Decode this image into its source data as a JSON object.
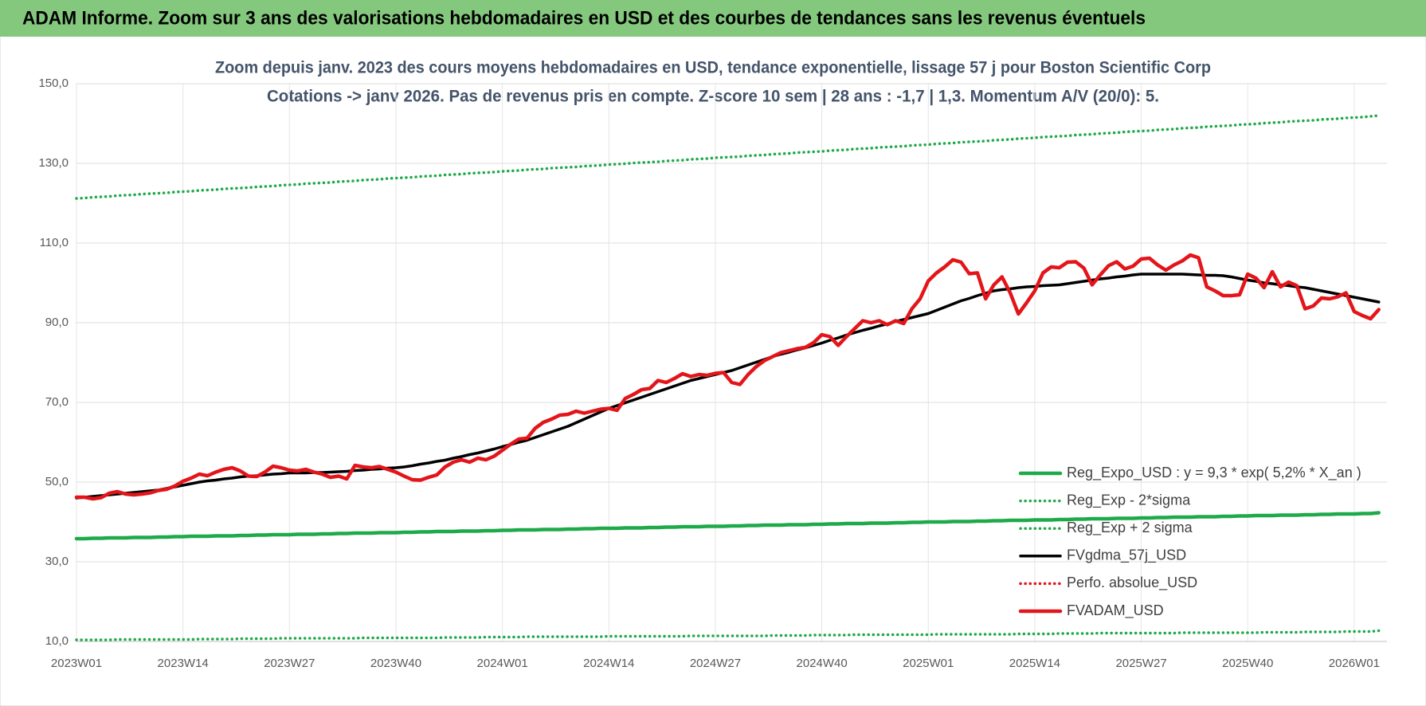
{
  "header": {
    "title": "ADAM Informe. Zoom sur 3 ans des valorisations hebdomadaires en USD et des courbes de tendances sans les revenus éventuels"
  },
  "chart_data": {
    "type": "line",
    "title": "Zoom depuis janv. 2023 des cours moyens hebdomadaires en USD, tendance exponentielle, lissage 57 j pour Boston Scientific Corp",
    "subtitle": "Cotations -> janv 2026. Pas de revenus pris en compte. Z-score 10 sem | 28 ans : -1,7 | 1,3. Momentum A/V (20/0): 5.",
    "ylim": [
      10,
      150
    ],
    "yticks": [
      {
        "value": 10,
        "label": "10,0"
      },
      {
        "value": 30,
        "label": "30,0"
      },
      {
        "value": 50,
        "label": "50,0"
      },
      {
        "value": 70,
        "label": "70,0"
      },
      {
        "value": 90,
        "label": "90,0"
      },
      {
        "value": 110,
        "label": "110,0"
      },
      {
        "value": 130,
        "label": "130,0"
      },
      {
        "value": 150,
        "label": "150,0"
      }
    ],
    "grid": true,
    "legend": "lower-right",
    "categories": [
      "2023W01",
      null,
      null,
      null,
      null,
      null,
      null,
      null,
      null,
      null,
      null,
      null,
      null,
      "2023W14",
      null,
      null,
      null,
      null,
      null,
      null,
      null,
      null,
      null,
      null,
      null,
      null,
      "2023W27",
      null,
      null,
      null,
      null,
      null,
      null,
      null,
      null,
      null,
      null,
      null,
      null,
      "2023W40",
      null,
      null,
      null,
      null,
      null,
      null,
      null,
      null,
      null,
      null,
      null,
      null,
      "2024W01",
      null,
      null,
      null,
      null,
      null,
      null,
      null,
      null,
      null,
      null,
      null,
      null,
      "2024W14",
      null,
      null,
      null,
      null,
      null,
      null,
      null,
      null,
      null,
      null,
      null,
      null,
      "2024W27",
      null,
      null,
      null,
      null,
      null,
      null,
      null,
      null,
      null,
      null,
      null,
      null,
      "2024W40",
      null,
      null,
      null,
      null,
      null,
      null,
      null,
      null,
      null,
      null,
      null,
      null,
      "2025W01",
      null,
      null,
      null,
      null,
      null,
      null,
      null,
      null,
      null,
      null,
      null,
      null,
      "2025W14",
      null,
      null,
      null,
      null,
      null,
      null,
      null,
      null,
      null,
      null,
      null,
      null,
      "2025W27",
      null,
      null,
      null,
      null,
      null,
      null,
      null,
      null,
      null,
      null,
      null,
      null,
      "2025W40",
      null,
      null,
      null,
      null,
      null,
      null,
      null,
      null,
      null,
      null,
      null,
      null,
      "2026W01",
      null,
      null,
      null
    ],
    "series": [
      {
        "name": "Reg_Expo_USD : y = 9,3 * exp( 5,2% * X_an )",
        "color": "#1faa4a",
        "linestyle": "solid",
        "values": [
          35.8,
          35.8,
          35.9,
          35.9,
          36.0,
          36.0,
          36.0,
          36.1,
          36.1,
          36.1,
          36.2,
          36.2,
          36.3,
          36.3,
          36.4,
          36.4,
          36.4,
          36.5,
          36.5,
          36.5,
          36.6,
          36.6,
          36.7,
          36.7,
          36.8,
          36.8,
          36.8,
          36.9,
          36.9,
          36.9,
          37.0,
          37.0,
          37.1,
          37.1,
          37.2,
          37.2,
          37.2,
          37.3,
          37.3,
          37.3,
          37.4,
          37.4,
          37.5,
          37.5,
          37.6,
          37.6,
          37.6,
          37.7,
          37.7,
          37.7,
          37.8,
          37.8,
          37.9,
          37.9,
          38.0,
          38.0,
          38.0,
          38.1,
          38.1,
          38.1,
          38.2,
          38.2,
          38.3,
          38.3,
          38.4,
          38.4,
          38.4,
          38.5,
          38.5,
          38.5,
          38.6,
          38.6,
          38.7,
          38.7,
          38.8,
          38.8,
          38.8,
          38.9,
          38.9,
          38.9,
          39.0,
          39.0,
          39.1,
          39.1,
          39.2,
          39.2,
          39.2,
          39.3,
          39.3,
          39.3,
          39.4,
          39.4,
          39.5,
          39.5,
          39.6,
          39.6,
          39.6,
          39.7,
          39.7,
          39.7,
          39.8,
          39.8,
          39.9,
          39.9,
          40.0,
          40.0,
          40.0,
          40.1,
          40.1,
          40.1,
          40.2,
          40.2,
          40.3,
          40.3,
          40.4,
          40.4,
          40.4,
          40.5,
          40.5,
          40.5,
          40.6,
          40.6,
          40.7,
          40.7,
          40.8,
          40.8,
          40.8,
          40.9,
          40.9,
          40.9,
          41.0,
          41.0,
          41.1,
          41.1,
          41.2,
          41.2,
          41.2,
          41.3,
          41.3,
          41.3,
          41.4,
          41.4,
          41.5,
          41.5,
          41.6,
          41.6,
          41.6,
          41.7,
          41.7,
          41.7,
          41.8,
          41.8,
          41.9,
          41.9,
          42.0,
          42.0,
          42.0,
          42.1,
          42.1,
          42.3
        ]
      },
      {
        "name": "Reg_Exp - 2*sigma",
        "color": "#1faa4a",
        "linestyle": "dotted",
        "values": [
          10.4,
          10.4,
          10.4,
          10.4,
          10.4,
          10.5,
          10.5,
          10.5,
          10.5,
          10.5,
          10.5,
          10.5,
          10.5,
          10.5,
          10.5,
          10.6,
          10.6,
          10.6,
          10.6,
          10.6,
          10.7,
          10.7,
          10.7,
          10.7,
          10.7,
          10.8,
          10.8,
          10.8,
          10.8,
          10.8,
          10.8,
          10.8,
          10.8,
          10.8,
          10.8,
          10.9,
          10.9,
          10.9,
          10.9,
          10.9,
          10.9,
          10.9,
          10.9,
          10.9,
          10.9,
          11.0,
          11.0,
          11.0,
          11.0,
          11.0,
          11.1,
          11.1,
          11.1,
          11.1,
          11.1,
          11.2,
          11.2,
          11.2,
          11.2,
          11.2,
          11.2,
          11.2,
          11.2,
          11.2,
          11.2,
          11.3,
          11.3,
          11.3,
          11.3,
          11.3,
          11.3,
          11.3,
          11.3,
          11.3,
          11.3,
          11.4,
          11.4,
          11.4,
          11.4,
          11.4,
          11.4,
          11.4,
          11.4,
          11.4,
          11.4,
          11.5,
          11.5,
          11.5,
          11.5,
          11.5,
          11.6,
          11.6,
          11.6,
          11.6,
          11.6,
          11.7,
          11.7,
          11.7,
          11.7,
          11.7,
          11.7,
          11.7,
          11.7,
          11.7,
          11.7,
          11.8,
          11.8,
          11.8,
          11.8,
          11.8,
          11.8,
          11.8,
          11.8,
          11.8,
          11.8,
          11.9,
          11.9,
          11.9,
          11.9,
          11.9,
          12.0,
          12.0,
          12.0,
          12.0,
          12.0,
          12.1,
          12.1,
          12.1,
          12.1,
          12.1,
          12.1,
          12.1,
          12.1,
          12.1,
          12.1,
          12.2,
          12.2,
          12.2,
          12.2,
          12.2,
          12.2,
          12.2,
          12.2,
          12.2,
          12.2,
          12.3,
          12.3,
          12.3,
          12.3,
          12.3,
          12.4,
          12.4,
          12.4,
          12.4,
          12.4,
          12.5,
          12.5,
          12.5,
          12.5,
          12.7
        ]
      },
      {
        "name": "Reg_Exp + 2 sigma",
        "color": "#1faa4a",
        "linestyle": "dotted",
        "values": [
          121.2,
          121.3,
          121.5,
          121.6,
          121.7,
          121.9,
          122.0,
          122.1,
          122.3,
          122.4,
          122.5,
          122.6,
          122.8,
          122.9,
          123.0,
          123.2,
          123.3,
          123.4,
          123.6,
          123.7,
          123.8,
          123.9,
          124.1,
          124.2,
          124.3,
          124.5,
          124.6,
          124.7,
          124.9,
          125.0,
          125.1,
          125.2,
          125.4,
          125.5,
          125.6,
          125.8,
          125.9,
          126.0,
          126.2,
          126.3,
          126.4,
          126.5,
          126.7,
          126.8,
          126.9,
          127.1,
          127.2,
          127.3,
          127.5,
          127.6,
          127.7,
          127.8,
          128.0,
          128.1,
          128.2,
          128.4,
          128.5,
          128.6,
          128.8,
          128.9,
          129.0,
          129.1,
          129.3,
          129.4,
          129.5,
          129.7,
          129.8,
          129.9,
          130.1,
          130.2,
          130.3,
          130.4,
          130.6,
          130.7,
          130.8,
          131.0,
          131.1,
          131.2,
          131.4,
          131.5,
          131.6,
          131.7,
          131.9,
          132.0,
          132.1,
          132.3,
          132.4,
          132.5,
          132.7,
          132.8,
          132.9,
          133.0,
          133.2,
          133.3,
          133.4,
          133.6,
          133.7,
          133.8,
          134.0,
          134.1,
          134.2,
          134.3,
          134.5,
          134.6,
          134.7,
          134.9,
          135.0,
          135.1,
          135.3,
          135.4,
          135.5,
          135.6,
          135.8,
          135.9,
          136.0,
          136.2,
          136.3,
          136.4,
          136.6,
          136.7,
          136.8,
          136.9,
          137.1,
          137.2,
          137.3,
          137.5,
          137.6,
          137.7,
          137.9,
          138.0,
          138.1,
          138.2,
          138.4,
          138.5,
          138.6,
          138.8,
          138.9,
          139.0,
          139.2,
          139.3,
          139.4,
          139.5,
          139.7,
          139.8,
          139.9,
          140.1,
          140.2,
          140.3,
          140.5,
          140.6,
          140.7,
          140.8,
          141.0,
          141.1,
          141.2,
          141.4,
          141.5,
          141.6,
          141.8,
          142.0
        ]
      },
      {
        "name": "FVgdma_57j_USD",
        "color": "#000000",
        "linestyle": "solid",
        "values": [
          46.0,
          46.2,
          46.4,
          46.6,
          46.8,
          47.0,
          47.2,
          47.4,
          47.6,
          47.8,
          48.0,
          48.4,
          48.8,
          49.2,
          49.6,
          50.0,
          50.3,
          50.5,
          50.8,
          51.0,
          51.3,
          51.5,
          51.6,
          51.8,
          52.0,
          52.1,
          52.3,
          52.3,
          52.3,
          52.4,
          52.4,
          52.5,
          52.6,
          52.7,
          52.9,
          53.0,
          53.2,
          53.3,
          53.5,
          53.6,
          53.8,
          54.1,
          54.5,
          54.8,
          55.2,
          55.5,
          56.0,
          56.4,
          56.9,
          57.3,
          57.8,
          58.3,
          58.9,
          59.4,
          60.0,
          60.5,
          61.2,
          61.9,
          62.6,
          63.3,
          64.0,
          64.9,
          65.8,
          66.7,
          67.6,
          68.5,
          69.2,
          69.9,
          70.6,
          71.3,
          72.0,
          72.7,
          73.4,
          74.1,
          74.8,
          75.5,
          76.0,
          76.5,
          77.0,
          77.5,
          78.0,
          78.7,
          79.4,
          80.1,
          80.8,
          81.5,
          82.1,
          82.6,
          83.2,
          83.7,
          84.3,
          84.9,
          85.6,
          86.2,
          86.9,
          87.5,
          88.1,
          88.6,
          89.2,
          89.7,
          90.3,
          90.8,
          91.3,
          91.8,
          92.3,
          93.1,
          93.9,
          94.7,
          95.5,
          96.1,
          96.8,
          97.4,
          98.0,
          98.3,
          98.5,
          98.8,
          99.0,
          99.1,
          99.3,
          99.4,
          99.5,
          99.8,
          100.1,
          100.4,
          100.7,
          101.0,
          101.2,
          101.5,
          101.7,
          102.0,
          102.2,
          102.2,
          102.2,
          102.2,
          102.2,
          102.2,
          102.1,
          102.0,
          101.9,
          101.9,
          101.8,
          101.5,
          101.1,
          100.7,
          100.4,
          100.0,
          99.8,
          99.5,
          99.3,
          99.0,
          98.8,
          98.4,
          98.0,
          97.6,
          97.2,
          96.8,
          96.4,
          96.0,
          95.6,
          95.2
        ]
      },
      {
        "name": "Perfo. absolue_USD",
        "color": "#e3151a",
        "linestyle": "dotted",
        "values": [
          46.2,
          46.2,
          45.8,
          46.1,
          47.2,
          47.6,
          47.0,
          46.8,
          47.0,
          47.3,
          47.9,
          48.2,
          49.0,
          50.2,
          51.0,
          52.0,
          51.6,
          52.5,
          53.2,
          53.6,
          52.8,
          51.5,
          51.4,
          52.5,
          54.0,
          53.6,
          53.0,
          52.8,
          53.2,
          52.5,
          52.0,
          51.2,
          51.5,
          50.8,
          54.2,
          53.8,
          53.6,
          53.9,
          53.2,
          52.5,
          51.5,
          50.6,
          50.5,
          51.2,
          51.8,
          53.8,
          55.0,
          55.6,
          55.0,
          56.0,
          55.6,
          56.5,
          58.0,
          59.5,
          60.8,
          61.0,
          63.5,
          65.0,
          65.8,
          66.8,
          67.0,
          67.8,
          67.3,
          67.8,
          68.3,
          68.5,
          68.0,
          71.0,
          72.0,
          73.2,
          73.5,
          75.5,
          75.0,
          76.0,
          77.2,
          76.5,
          77.0,
          76.8,
          77.3,
          77.5,
          75.0,
          74.5,
          77.0,
          79.0,
          80.5,
          81.5,
          82.5,
          83.0,
          83.5,
          83.8,
          85.0,
          87.0,
          86.5,
          84.3,
          86.5,
          88.5,
          90.5,
          90.0,
          90.5,
          89.5,
          90.5,
          89.8,
          93.5,
          96.0,
          100.5,
          102.5,
          104.0,
          105.8,
          105.2,
          102.3,
          102.5,
          96.0,
          99.5,
          101.5,
          97.5,
          92.2,
          95.0,
          98.0,
          102.5,
          104.0,
          103.8,
          105.2,
          105.3,
          103.7,
          99.5,
          102.0,
          104.3,
          105.3,
          103.5,
          104.2,
          106.0,
          106.2,
          104.5,
          103.2,
          104.5,
          105.5,
          107.0,
          106.3,
          99.0,
          98.0,
          96.8,
          96.8,
          97.0,
          102.2,
          101.2,
          98.8,
          102.8,
          99.0,
          100.2,
          99.3,
          93.5,
          94.2,
          96.2,
          96.0,
          96.5,
          97.5,
          92.8,
          91.8,
          91.0,
          93.3
        ]
      },
      {
        "name": "FVADAM_USD",
        "color": "#e3151a",
        "linestyle": "solid",
        "values": [
          46.2,
          46.2,
          45.8,
          46.1,
          47.2,
          47.6,
          47.0,
          46.8,
          47.0,
          47.3,
          47.9,
          48.2,
          49.0,
          50.2,
          51.0,
          52.0,
          51.6,
          52.5,
          53.2,
          53.6,
          52.8,
          51.5,
          51.4,
          52.5,
          54.0,
          53.6,
          53.0,
          52.8,
          53.2,
          52.5,
          52.0,
          51.2,
          51.5,
          50.8,
          54.2,
          53.8,
          53.6,
          53.9,
          53.2,
          52.5,
          51.5,
          50.6,
          50.5,
          51.2,
          51.8,
          53.8,
          55.0,
          55.6,
          55.0,
          56.0,
          55.6,
          56.5,
          58.0,
          59.5,
          60.8,
          61.0,
          63.5,
          65.0,
          65.8,
          66.8,
          67.0,
          67.8,
          67.3,
          67.8,
          68.3,
          68.5,
          68.0,
          71.0,
          72.0,
          73.2,
          73.5,
          75.5,
          75.0,
          76.0,
          77.2,
          76.5,
          77.0,
          76.8,
          77.3,
          77.5,
          75.0,
          74.5,
          77.0,
          79.0,
          80.5,
          81.5,
          82.5,
          83.0,
          83.5,
          83.8,
          85.0,
          87.0,
          86.5,
          84.3,
          86.5,
          88.5,
          90.5,
          90.0,
          90.5,
          89.5,
          90.5,
          89.8,
          93.5,
          96.0,
          100.5,
          102.5,
          104.0,
          105.8,
          105.2,
          102.3,
          102.5,
          96.0,
          99.5,
          101.5,
          97.5,
          92.2,
          95.0,
          98.0,
          102.5,
          104.0,
          103.8,
          105.2,
          105.3,
          103.7,
          99.5,
          102.0,
          104.3,
          105.3,
          103.5,
          104.2,
          106.0,
          106.2,
          104.5,
          103.2,
          104.5,
          105.5,
          107.0,
          106.3,
          99.0,
          98.0,
          96.8,
          96.8,
          97.0,
          102.2,
          101.2,
          98.8,
          102.8,
          99.0,
          100.2,
          99.3,
          93.5,
          94.2,
          96.2,
          96.0,
          96.5,
          97.5,
          92.8,
          91.8,
          91.0,
          93.3
        ]
      }
    ]
  }
}
